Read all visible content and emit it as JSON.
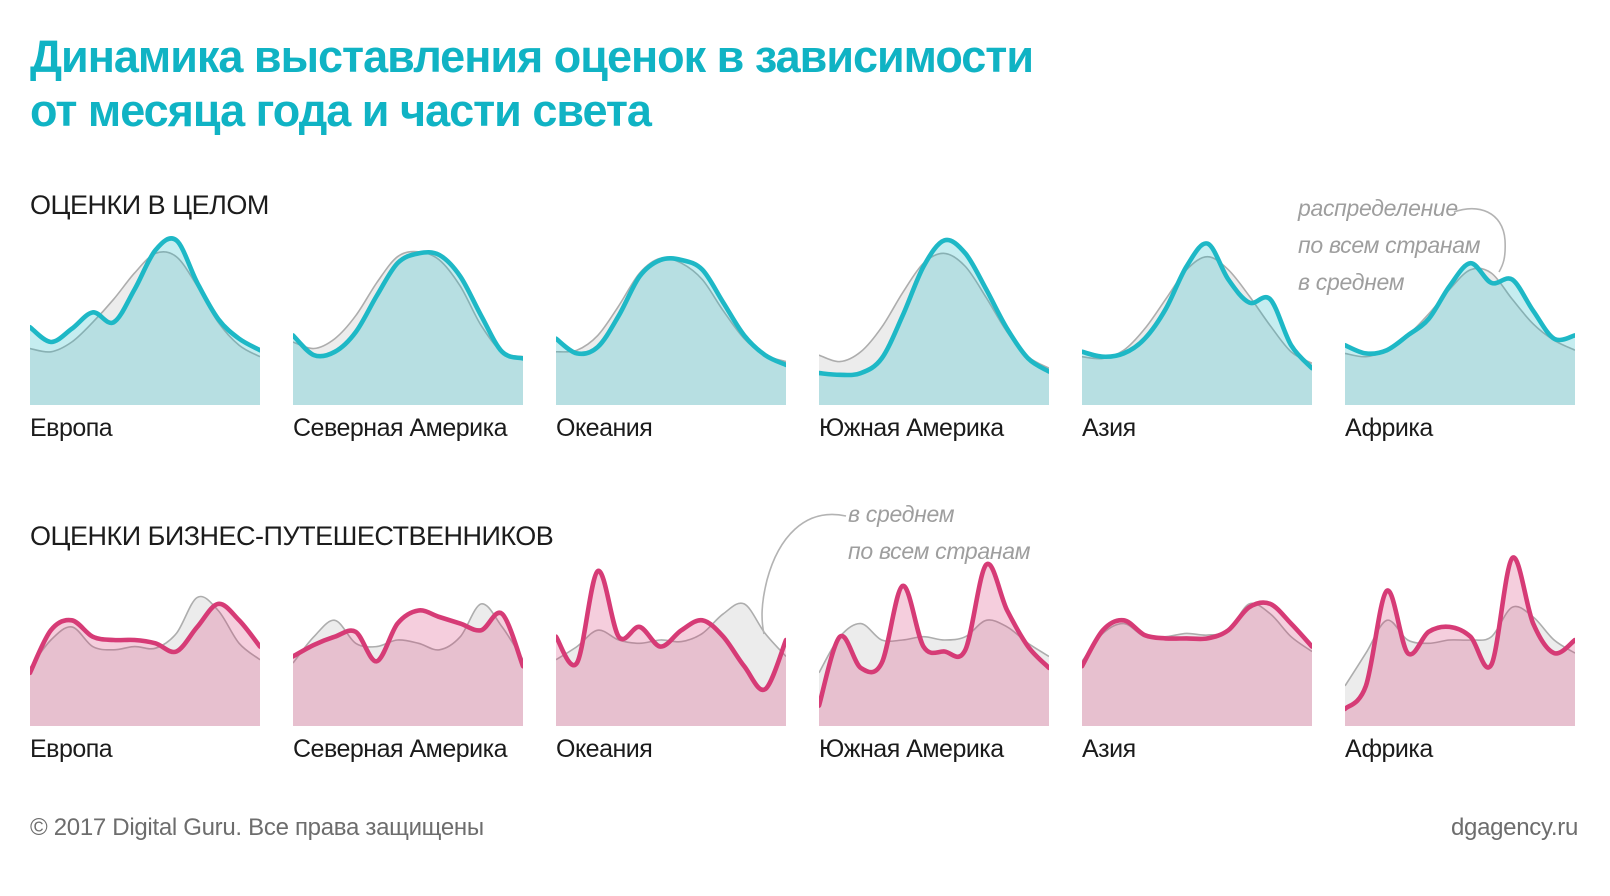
{
  "title": "Динамика выставления оценок в зависимости\nот месяца года и части света",
  "colors": {
    "title_teal": "#10b3c4",
    "overall_stroke": "#1eb8c6",
    "overall_fill": "rgba(30,184,198,0.26)",
    "business_stroke": "#d63b76",
    "business_fill": "rgba(214,59,118,0.25)",
    "average_stroke": "#adadad",
    "average_fill": "rgba(0,0,0,0.075)",
    "annotation_gray": "#9e9e9e"
  },
  "footer": {
    "copyright": "© 2017 Digital Guru. Все права защищены",
    "site": "dgagency.ru"
  },
  "chart_data": [
    {
      "type": "area",
      "section": "ОЦЕНКИ В ЦЕЛОМ",
      "annotation": "распределение\nпо всем странам\nв среднем",
      "x_axis": "месяцы года (1–12, подписи осей не показаны)",
      "x": [
        1,
        2,
        3,
        4,
        5,
        6,
        7,
        8,
        9,
        10,
        11,
        12
      ],
      "y_scale": "относительная интенсивность оценок, 0–1",
      "grid": false,
      "legend": "серая линия — распределение по всем странам в среднем",
      "charts": [
        {
          "id": "europe",
          "label": "Европа",
          "values": [
            0.45,
            0.36,
            0.44,
            0.54,
            0.48,
            0.68,
            0.92,
            0.98,
            0.72,
            0.5,
            0.38,
            0.31
          ],
          "average": [
            0.32,
            0.3,
            0.36,
            0.48,
            0.62,
            0.78,
            0.9,
            0.88,
            0.7,
            0.48,
            0.34,
            0.27
          ]
        },
        {
          "id": "north-america",
          "label": "Северная Америка",
          "values": [
            0.4,
            0.28,
            0.3,
            0.42,
            0.64,
            0.84,
            0.9,
            0.89,
            0.76,
            0.52,
            0.3,
            0.26
          ],
          "average": [
            0.36,
            0.32,
            0.38,
            0.52,
            0.72,
            0.88,
            0.91,
            0.86,
            0.7,
            0.46,
            0.3,
            0.27
          ]
        },
        {
          "id": "oceania",
          "label": "Океания",
          "values": [
            0.38,
            0.29,
            0.33,
            0.52,
            0.76,
            0.86,
            0.86,
            0.8,
            0.6,
            0.4,
            0.28,
            0.22
          ],
          "average": [
            0.3,
            0.31,
            0.4,
            0.58,
            0.78,
            0.87,
            0.84,
            0.74,
            0.55,
            0.38,
            0.28,
            0.24
          ]
        },
        {
          "id": "south-america",
          "label": "Южная Америка",
          "values": [
            0.17,
            0.16,
            0.17,
            0.26,
            0.52,
            0.82,
            0.98,
            0.9,
            0.68,
            0.44,
            0.26,
            0.18
          ],
          "average": [
            0.28,
            0.24,
            0.3,
            0.45,
            0.66,
            0.84,
            0.9,
            0.82,
            0.63,
            0.42,
            0.27,
            0.2
          ]
        },
        {
          "id": "asia",
          "label": "Азия",
          "values": [
            0.3,
            0.27,
            0.29,
            0.38,
            0.56,
            0.82,
            0.96,
            0.74,
            0.6,
            0.62,
            0.34,
            0.2
          ],
          "average": [
            0.27,
            0.26,
            0.31,
            0.44,
            0.62,
            0.8,
            0.88,
            0.8,
            0.64,
            0.46,
            0.3,
            0.23
          ]
        },
        {
          "id": "africa",
          "label": "Африка",
          "values": [
            0.34,
            0.29,
            0.31,
            0.4,
            0.5,
            0.7,
            0.84,
            0.72,
            0.74,
            0.55,
            0.38,
            0.4
          ],
          "average": [
            0.29,
            0.27,
            0.31,
            0.4,
            0.53,
            0.68,
            0.8,
            0.78,
            0.62,
            0.47,
            0.37,
            0.31
          ]
        }
      ]
    },
    {
      "type": "area",
      "section": "ОЦЕНКИ БИЗНЕС-ПУТЕШЕСТВЕННИКОВ",
      "annotation": "в среднем\nпо всем странам",
      "x_axis": "месяцы года (1–12, подписи осей не показаны)",
      "x": [
        1,
        2,
        3,
        4,
        5,
        6,
        7,
        8,
        9,
        10,
        11,
        12
      ],
      "y_scale": "относительная интенсивность оценок, 0–1",
      "grid": false,
      "legend": "серая линия — в среднем по всем странам",
      "charts": [
        {
          "id": "europe",
          "label": "Европа",
          "values": [
            0.3,
            0.56,
            0.62,
            0.52,
            0.5,
            0.5,
            0.48,
            0.43,
            0.58,
            0.72,
            0.62,
            0.46
          ],
          "average": [
            0.33,
            0.5,
            0.58,
            0.46,
            0.44,
            0.46,
            0.45,
            0.54,
            0.76,
            0.68,
            0.48,
            0.38
          ]
        },
        {
          "id": "north-america",
          "label": "Северная Америка",
          "values": [
            0.4,
            0.47,
            0.52,
            0.55,
            0.37,
            0.6,
            0.68,
            0.64,
            0.6,
            0.56,
            0.66,
            0.34
          ],
          "average": [
            0.36,
            0.52,
            0.62,
            0.48,
            0.46,
            0.5,
            0.48,
            0.44,
            0.52,
            0.72,
            0.58,
            0.38
          ]
        },
        {
          "id": "oceania",
          "label": "Океания",
          "values": [
            0.52,
            0.36,
            0.92,
            0.52,
            0.58,
            0.46,
            0.56,
            0.62,
            0.52,
            0.34,
            0.2,
            0.5
          ],
          "average": [
            0.38,
            0.46,
            0.56,
            0.5,
            0.48,
            0.5,
            0.49,
            0.54,
            0.66,
            0.72,
            0.54,
            0.4
          ]
        },
        {
          "id": "south-america",
          "label": "Южная Америка",
          "values": [
            0.1,
            0.52,
            0.33,
            0.36,
            0.83,
            0.46,
            0.43,
            0.44,
            0.96,
            0.68,
            0.46,
            0.33
          ],
          "average": [
            0.3,
            0.52,
            0.6,
            0.5,
            0.5,
            0.52,
            0.5,
            0.52,
            0.62,
            0.58,
            0.48,
            0.4
          ]
        },
        {
          "id": "asia",
          "label": "Азия",
          "values": [
            0.34,
            0.56,
            0.62,
            0.53,
            0.51,
            0.51,
            0.51,
            0.56,
            0.7,
            0.72,
            0.6,
            0.46
          ],
          "average": [
            0.37,
            0.54,
            0.6,
            0.52,
            0.52,
            0.54,
            0.53,
            0.56,
            0.72,
            0.66,
            0.52,
            0.43
          ]
        },
        {
          "id": "africa",
          "label": "Африка",
          "values": [
            0.08,
            0.22,
            0.8,
            0.42,
            0.55,
            0.58,
            0.52,
            0.35,
            1.0,
            0.6,
            0.42,
            0.5
          ],
          "average": [
            0.22,
            0.42,
            0.62,
            0.5,
            0.48,
            0.5,
            0.5,
            0.52,
            0.7,
            0.64,
            0.5,
            0.42
          ]
        }
      ]
    }
  ]
}
